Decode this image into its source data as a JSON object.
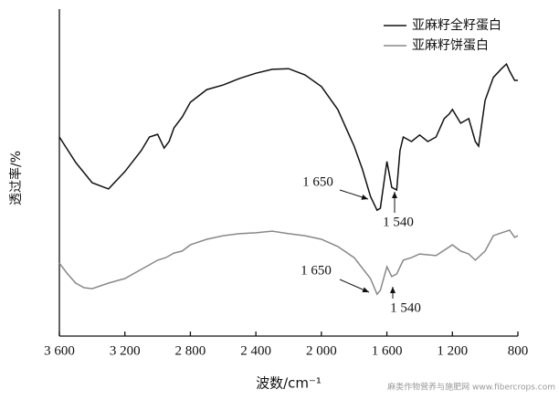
{
  "chart_data": {
    "type": "line",
    "y_label": "透过率/%",
    "x_label": "波数/cm⁻¹",
    "xlim": [
      3600,
      800
    ],
    "xticks": [
      {
        "value": 3600,
        "label": "3 600"
      },
      {
        "value": 3200,
        "label": "3 200"
      },
      {
        "value": 2800,
        "label": "2 800"
      },
      {
        "value": 2400,
        "label": "2 400"
      },
      {
        "value": 2000,
        "label": "2 000"
      },
      {
        "value": 1600,
        "label": "1 600"
      },
      {
        "value": 1200,
        "label": "1 200"
      },
      800
    ],
    "ylim": [
      0,
      100
    ],
    "legend": "top-right",
    "series": [
      {
        "name": "亚麻籽全籽蛋白",
        "color": "#111111",
        "x": [
          3600,
          3500,
          3400,
          3300,
          3200,
          3100,
          3050,
          3000,
          2960,
          2930,
          2900,
          2850,
          2800,
          2700,
          2600,
          2500,
          2400,
          2300,
          2200,
          2100,
          2000,
          1900,
          1800,
          1750,
          1700,
          1660,
          1640,
          1600,
          1570,
          1540,
          1520,
          1500,
          1450,
          1400,
          1350,
          1300,
          1250,
          1220,
          1200,
          1150,
          1100,
          1060,
          1040,
          1000,
          950,
          900,
          870,
          850,
          820,
          800
        ],
        "values": [
          60.9,
          53.1,
          46.9,
          45.0,
          50.3,
          56.7,
          60.9,
          61.7,
          57.5,
          59.5,
          63.7,
          67.0,
          71.5,
          75.4,
          76.8,
          78.8,
          80.4,
          81.6,
          81.8,
          79.9,
          76.3,
          69.3,
          58.1,
          51.1,
          42.7,
          38.5,
          39.1,
          53.4,
          45.5,
          44.7,
          56.7,
          60.9,
          59.5,
          61.5,
          59.5,
          60.9,
          66.5,
          67.9,
          69.3,
          65.1,
          66.5,
          59.5,
          58.1,
          72.1,
          79.1,
          81.8,
          83.2,
          81.0,
          78.2,
          78.2
        ]
      },
      {
        "name": "亚麻籽饼蛋白",
        "color": "#888888",
        "x": [
          3600,
          3550,
          3500,
          3450,
          3400,
          3300,
          3200,
          3100,
          3050,
          3000,
          2950,
          2900,
          2850,
          2800,
          2700,
          2600,
          2500,
          2400,
          2300,
          2200,
          2100,
          2000,
          1900,
          1800,
          1700,
          1660,
          1640,
          1600,
          1570,
          1540,
          1500,
          1450,
          1400,
          1300,
          1200,
          1150,
          1100,
          1060,
          1000,
          950,
          900,
          850,
          820,
          800
        ],
        "values": [
          22.3,
          19.0,
          16.2,
          14.8,
          14.5,
          16.2,
          17.6,
          20.4,
          21.8,
          23.2,
          24.0,
          25.4,
          26.0,
          27.9,
          29.6,
          30.7,
          31.3,
          31.6,
          32.1,
          31.3,
          30.7,
          29.6,
          27.4,
          24.0,
          17.6,
          12.8,
          14.0,
          21.2,
          18.2,
          19.0,
          23.2,
          24.0,
          25.1,
          24.6,
          27.9,
          26.0,
          25.1,
          23.2,
          26.0,
          30.7,
          31.6,
          32.4,
          30.2,
          30.7
        ]
      }
    ],
    "annotations": [
      "1 650",
      "1 540",
      "1 650",
      "1 540"
    ],
    "watermark": "麻类作物营养与施肥网 www.fibercrops.com"
  }
}
